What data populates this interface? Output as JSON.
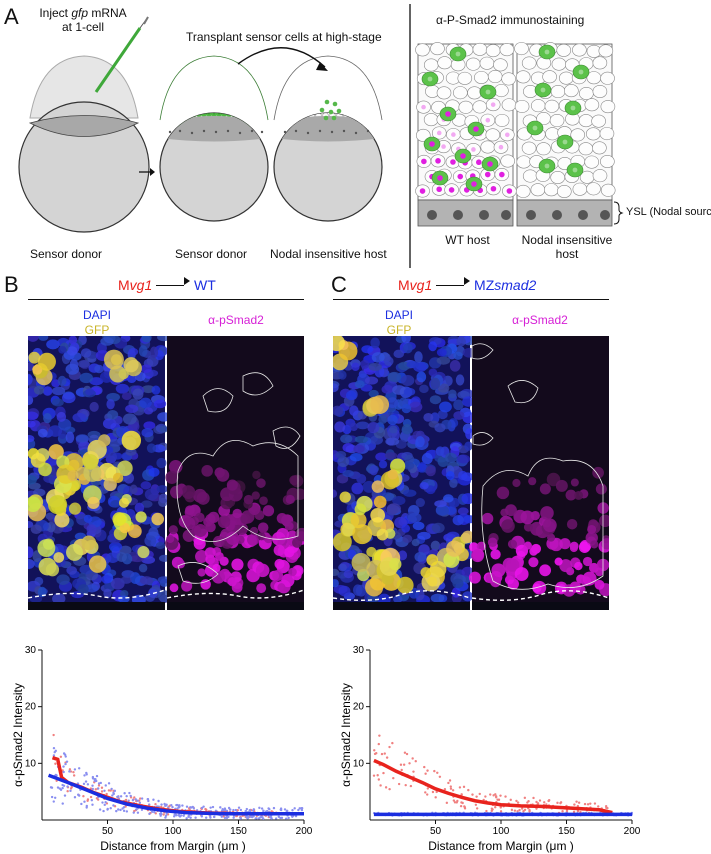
{
  "panelA": {
    "letter": "A",
    "inject_prefix": "Inject ",
    "inject_gene": "gfp",
    "inject_suffix": " mRNA",
    "inject_line2": "at 1-cell",
    "transplant": "Transplant sensor cells at high-stage",
    "immuno": "α-P-Smad2 immunostaining",
    "label_donor1": "Sensor donor",
    "label_donor2": "Sensor donor",
    "label_host": "Nodal insensitive host",
    "label_wt": "WT host",
    "label_nodal_l1": "Nodal insensitive",
    "label_nodal_l2": "host",
    "ysl": "YSL (Nodal source)"
  },
  "panelB": {
    "letter": "B",
    "donor_prefix": "M",
    "donor_gene": "vg1",
    "recipient": "WT",
    "dapi": "DAPI",
    "gfp": "GFP",
    "psmad": "α-pSmad2"
  },
  "panelC": {
    "letter": "C",
    "donor_prefix": "M",
    "donor_gene": "vg1",
    "recipient_prefix": "MZ",
    "recipient_gene": "smad2",
    "dapi": "DAPI",
    "gfp": "GFP",
    "psmad": "α-pSmad2"
  },
  "colors": {
    "red": "#e8231d",
    "blue": "#1b2ee0",
    "yellow": "#c9b52a",
    "magenta": "#d61fd6",
    "green": "#5cc24a"
  },
  "chart_data": [
    {
      "type": "scatter",
      "xlabel": "Distance from Margin (μm )",
      "ylabel": "α-pSmad2 Intensity",
      "xlim": [
        0,
        200
      ],
      "ylim": [
        0,
        30
      ],
      "xticks": [
        50,
        100,
        150,
        200
      ],
      "yticks": [
        0,
        10,
        20,
        30
      ],
      "series": [
        {
          "color": "#e8231d",
          "trend_x": [
            8,
            12,
            15,
            20,
            30,
            40,
            50,
            60,
            75,
            90,
            105,
            120,
            135,
            150,
            165,
            180
          ],
          "trend_y": [
            11,
            10.7,
            7.5,
            6.6,
            5.8,
            4.8,
            4.0,
            3.2,
            2.5,
            1.9,
            1.5,
            1.3,
            1.2,
            1.1,
            1.1,
            1.1
          ]
        },
        {
          "color": "#1b2ee0",
          "trend_x": [
            5,
            20,
            35,
            50,
            65,
            80,
            95,
            110,
            125,
            140,
            155,
            170,
            185,
            200
          ],
          "trend_y": [
            7.9,
            6.6,
            5.2,
            3.8,
            2.8,
            2.1,
            1.6,
            1.3,
            1.2,
            1.1,
            1.1,
            1.1,
            1.1,
            1.1
          ]
        }
      ]
    },
    {
      "type": "scatter",
      "xlabel": "Distance from Margin (μm )",
      "ylabel": "α-pSmad2 Intensity",
      "xlim": [
        0,
        200
      ],
      "ylim": [
        0,
        30
      ],
      "xticks": [
        50,
        100,
        150,
        200
      ],
      "yticks": [
        0,
        10,
        20,
        30
      ],
      "series": [
        {
          "color": "#e8231d",
          "trend_x": [
            3,
            10,
            20,
            30,
            40,
            50,
            60,
            70,
            80,
            90,
            100,
            115,
            130,
            145,
            160,
            175,
            185
          ],
          "trend_y": [
            10.5,
            9.8,
            8.6,
            7.6,
            6.6,
            5.5,
            4.7,
            4.0,
            3.4,
            3.0,
            2.7,
            2.5,
            2.4,
            2.2,
            2.0,
            1.8,
            1.3
          ]
        },
        {
          "color": "#1b2ee0",
          "trend_x": [
            3,
            50,
            100,
            150,
            200
          ],
          "trend_y": [
            1.0,
            1.0,
            1.0,
            1.0,
            1.0
          ]
        }
      ]
    }
  ]
}
